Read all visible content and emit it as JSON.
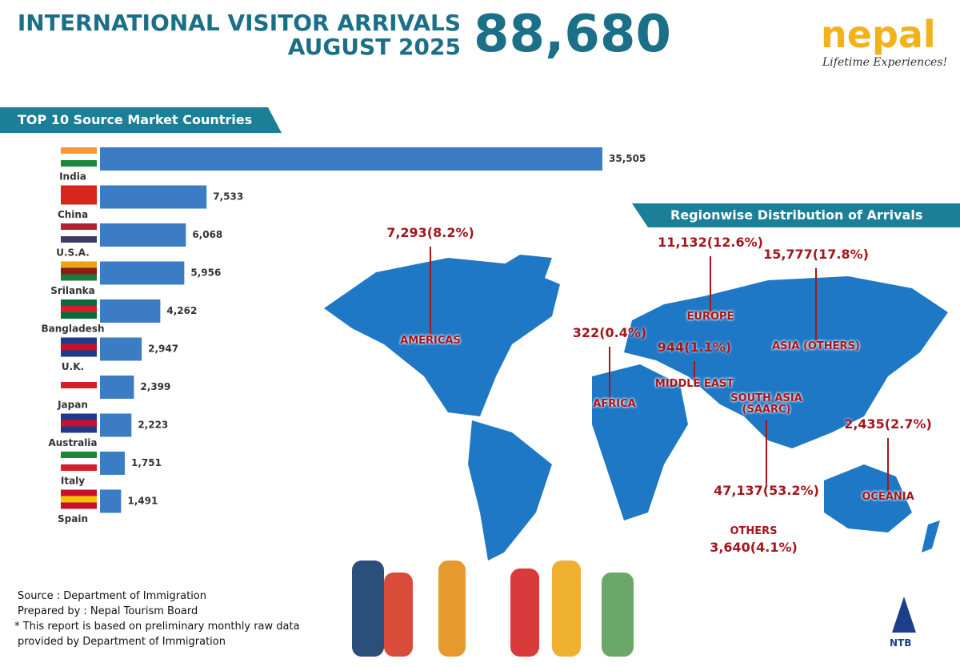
{
  "header": {
    "title": "INTERNATIONAL VISITOR ARRIVALS",
    "subtitle": "AUGUST 2025",
    "total": "88,680",
    "logo": "nepal",
    "tagline": "Lifetime Experiences!"
  },
  "chart_data": {
    "type": "bar",
    "title": "TOP 10 Source Market Countries",
    "categories": [
      "India",
      "China",
      "U.S.A.",
      "Srilanka",
      "Bangladesh",
      "U.K.",
      "Japan",
      "Australia",
      "Italy",
      "Spain"
    ],
    "values": [
      35505,
      7533,
      6068,
      5956,
      4262,
      2947,
      2399,
      2223,
      1751,
      1491
    ],
    "value_labels": [
      "35,505",
      "7,533",
      "6,068",
      "5,956",
      "4,262",
      "2,947",
      "2,399",
      "2,223",
      "1,751",
      "1,491"
    ],
    "color": "#3b7cc4"
  },
  "regions": {
    "title": "Regionwise Distribution of Arrivals",
    "items": [
      {
        "name": "AMERICAS",
        "label": "7,293(8.2%)"
      },
      {
        "name": "EUROPE",
        "label": "11,132(12.6%)"
      },
      {
        "name": "ASIA (OTHERS)",
        "label": "15,777(17.8%)"
      },
      {
        "name": "AFRICA",
        "label": "322(0.4%)"
      },
      {
        "name": "MIDDLE EAST",
        "label": "944(1.1%)"
      },
      {
        "name": "SOUTH ASIA (SAARC)",
        "label": "47,137(53.2%)"
      },
      {
        "name": "OCEANIA",
        "label": "2,435(2.7%)"
      },
      {
        "name": "OTHERS",
        "label": "3,640(4.1%)"
      }
    ]
  },
  "footer": {
    "lines": [
      "Source : Department of Immigration",
      "Prepared by : Nepal Tourism Board",
      "* This report is based on preliminary monthly raw data",
      "provided by Department of Immigration"
    ],
    "badge": "NTB"
  }
}
